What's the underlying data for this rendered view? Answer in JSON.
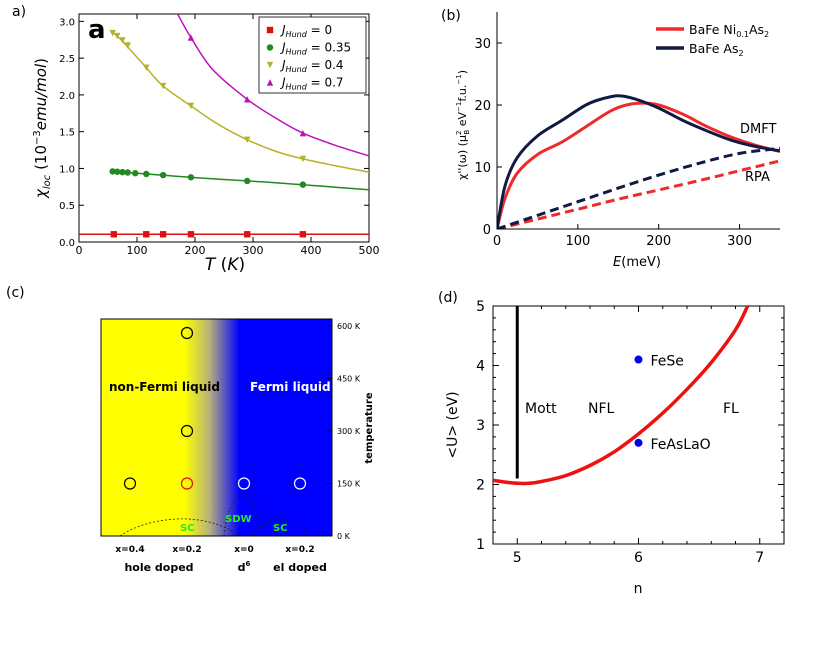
{
  "figure": {
    "panels": [
      {
        "label": "a)"
      },
      {
        "label": "(b)"
      },
      {
        "label": "(c)"
      },
      {
        "label": "(d)"
      }
    ]
  },
  "chart_data": [
    {
      "type": "line",
      "panel": "a)",
      "inset_label": "a",
      "xlabel": "T (K)",
      "ylabel": "χloc (10−3 emu/mol)",
      "xlim": [
        0,
        500
      ],
      "ylim": [
        0,
        3.1
      ],
      "xticks": [
        0,
        100,
        200,
        300,
        400,
        500
      ],
      "yticks": [
        0.0,
        0.5,
        1.0,
        1.5,
        2.0,
        2.5,
        3.0
      ],
      "series": [
        {
          "name": "JHund = 0",
          "legend_sub": "Hund",
          "legend_main": "J",
          "legend_val": "= 0",
          "color": "#dd1111",
          "marker": "square",
          "x": [
            60,
            116,
            145,
            193,
            290,
            386
          ],
          "y": [
            0.105,
            0.105,
            0.105,
            0.105,
            0.105,
            0.105
          ],
          "curve_x": [
            0,
            500
          ],
          "curve_y": [
            0.105,
            0.105
          ]
        },
        {
          "name": "JHund = 0.35",
          "legend_sub": "Hund",
          "legend_main": "J",
          "legend_val": "= 0.35",
          "color": "#228822",
          "marker": "circle",
          "x": [
            58,
            66,
            75,
            84,
            97,
            116,
            145,
            193,
            290,
            386
          ],
          "y": [
            0.96,
            0.955,
            0.95,
            0.945,
            0.935,
            0.925,
            0.91,
            0.88,
            0.83,
            0.78
          ],
          "curve_x": [
            58,
            100,
            150,
            200,
            250,
            300,
            350,
            400,
            450,
            500
          ],
          "curve_y": [
            0.96,
            0.935,
            0.905,
            0.875,
            0.85,
            0.825,
            0.8,
            0.77,
            0.74,
            0.71
          ]
        },
        {
          "name": "JHund = 0.4",
          "legend_sub": "Hund",
          "legend_main": "J",
          "legend_val": "= 0.4",
          "color": "#b5b22a",
          "marker": "triangle-down",
          "x": [
            58,
            66,
            75,
            84,
            116,
            145,
            193,
            290,
            386
          ],
          "y": [
            2.84,
            2.8,
            2.74,
            2.67,
            2.37,
            2.12,
            1.85,
            1.39,
            1.13
          ],
          "curve_x": [
            55,
            70,
            90,
            116,
            145,
            193,
            240,
            290,
            340,
            386,
            440,
            500
          ],
          "curve_y": [
            2.87,
            2.77,
            2.6,
            2.37,
            2.12,
            1.85,
            1.6,
            1.39,
            1.23,
            1.13,
            1.04,
            0.95
          ]
        },
        {
          "name": "JHund = 0.7",
          "legend_sub": "Hund",
          "legend_main": "J",
          "legend_val": "= 0.7",
          "color": "#bb11bb",
          "marker": "triangle-up",
          "x": [
            193,
            290,
            386
          ],
          "y": [
            2.78,
            1.94,
            1.48
          ],
          "curve_x": [
            170,
            193,
            230,
            290,
            340,
            386,
            440,
            500
          ],
          "curve_y": [
            3.1,
            2.78,
            2.35,
            1.94,
            1.68,
            1.48,
            1.32,
            1.17
          ]
        }
      ]
    },
    {
      "type": "line",
      "panel": "(b)",
      "xlabel": "E(meV)",
      "ylabel": "χ''(ω) (μ2B eV−1f.u.−1)",
      "xlim": [
        0,
        350
      ],
      "ylim": [
        0,
        35
      ],
      "xticks": [
        0,
        100,
        200,
        300
      ],
      "yticks": [
        0,
        10,
        20,
        30
      ],
      "annotations": [
        "DMFT",
        "RPA"
      ],
      "series": [
        {
          "name": "BaFe Ni0.1As2",
          "legend_main": "BaFe  Ni",
          "legend_sub": "0.1",
          "legend_end": "As",
          "legend_sub2": "2",
          "color": "#ee2a2a",
          "style": "solid",
          "x": [
            0,
            10,
            25,
            50,
            80,
            110,
            140,
            160,
            180,
            200,
            230,
            260,
            290,
            320,
            350
          ],
          "y": [
            0,
            5,
            9,
            12,
            14,
            16.5,
            19,
            20,
            20.3,
            20,
            18.5,
            16.5,
            14.8,
            13.5,
            12.5
          ]
        },
        {
          "name": "BaFe As2",
          "legend_main": "BaFe As",
          "legend_sub": "2",
          "legend_end": "",
          "legend_sub2": "",
          "color": "#111a44",
          "style": "solid",
          "x": [
            0,
            10,
            25,
            50,
            80,
            110,
            130,
            150,
            170,
            200,
            230,
            260,
            290,
            320,
            350
          ],
          "y": [
            0,
            7,
            11.5,
            15,
            17.5,
            20,
            21,
            21.5,
            21,
            19.5,
            17.5,
            15.8,
            14.3,
            13.3,
            12.6
          ]
        },
        {
          "name": "BaFe Ni0.1As2 RPA",
          "color": "#ee2a2a",
          "style": "dashed",
          "x": [
            0,
            50,
            100,
            150,
            200,
            250,
            300,
            350
          ],
          "y": [
            0,
            1.6,
            3.2,
            4.8,
            6.3,
            7.8,
            9.4,
            11
          ]
        },
        {
          "name": "BaFe As2 RPA",
          "color": "#111a44",
          "style": "dashed",
          "x": [
            0,
            50,
            100,
            150,
            200,
            250,
            300,
            350
          ],
          "y": [
            0,
            2.2,
            4.4,
            6.6,
            8.7,
            10.6,
            12.2,
            13
          ]
        }
      ]
    },
    {
      "type": "heatmap",
      "panel": "(c)",
      "regions": [
        "non-Fermi liquid",
        "Fermi liquid"
      ],
      "domes": [
        "SC",
        "SDW",
        "SC"
      ],
      "colors": {
        "nfl": "#ffff00",
        "fl": "#0000ff",
        "dome_text": "#22ee22"
      },
      "x_categories": [
        "x=0.4",
        "x=0.2",
        "x=0",
        "x=0.2"
      ],
      "x_groups": [
        "hole doped",
        "d6",
        "el doped"
      ],
      "d6_base": "d",
      "d6_sup": "6",
      "ylabel": "temperature",
      "yticks": [
        "600 K",
        "450 K",
        "300 K",
        "150 K",
        "0 K"
      ],
      "ytick_values": [
        600,
        450,
        300,
        150,
        0
      ],
      "points": [
        {
          "x": "x=0.2 (hole)",
          "T": 580,
          "color": "#000000"
        },
        {
          "x": "x=0.2 (hole)",
          "T": 300,
          "color": "#000000"
        },
        {
          "x": "x=0.4 (hole)",
          "T": 150,
          "color": "#000000"
        },
        {
          "x": "x=0.2 (hole)",
          "T": 150,
          "color": "#dd1111"
        },
        {
          "x": "x=0 (d6)",
          "T": 150,
          "color": "#ffffff"
        },
        {
          "x": "x=0.2 (el)",
          "T": 150,
          "color": "#ffffff"
        }
      ]
    },
    {
      "type": "line",
      "panel": "(d)",
      "xlabel": "n",
      "ylabel": "<U> (eV)",
      "xlim": [
        4.8,
        7.2
      ],
      "ylim": [
        1,
        5
      ],
      "xticks": [
        5,
        6,
        7
      ],
      "yticks": [
        1,
        2,
        3,
        4,
        5
      ],
      "regions": [
        "Mott",
        "NFL",
        "FL"
      ],
      "series": [
        {
          "name": "boundary",
          "color": "#ee1111",
          "x": [
            4.8,
            4.9,
            5.0,
            5.1,
            5.2,
            5.4,
            5.6,
            5.8,
            6.0,
            6.2,
            6.4,
            6.6,
            6.8,
            6.9
          ],
          "y": [
            2.07,
            2.04,
            2.02,
            2.02,
            2.05,
            2.15,
            2.32,
            2.55,
            2.85,
            3.2,
            3.6,
            4.05,
            4.6,
            5.0
          ]
        },
        {
          "name": "Mott line",
          "color": "#000000",
          "x": [
            5.0,
            5.0
          ],
          "y": [
            2.1,
            5.0
          ]
        }
      ],
      "points": [
        {
          "label": "FeSe",
          "x": 6.0,
          "y": 4.1,
          "color": "#0000ee"
        },
        {
          "label": "FeAsLaO",
          "x": 6.0,
          "y": 2.7,
          "color": "#0000ee"
        }
      ]
    }
  ]
}
